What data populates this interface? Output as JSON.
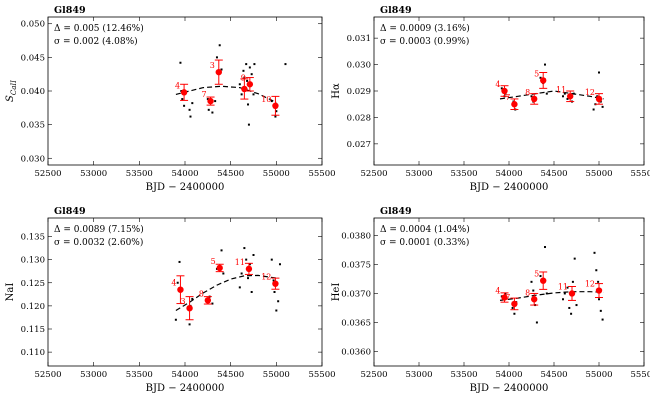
{
  "chart_data": [
    {
      "type": "scatter",
      "title": "Gl849",
      "xlabel": "BJD − 2400000",
      "ylabel": "S_CaII",
      "xlim": [
        52500,
        55500
      ],
      "ylim": [
        0.029,
        0.051
      ],
      "xticks": [
        52500,
        53000,
        53500,
        54000,
        54500,
        55000,
        55500
      ],
      "xtick_labels": [
        "52500",
        "53000",
        "53500",
        "54000",
        "54500",
        "55000",
        "55500"
      ],
      "yticks": [
        0.03,
        0.035,
        0.04,
        0.045,
        0.05
      ],
      "ytick_labels": [
        "0.030",
        "0.035",
        "0.040",
        "0.045",
        "0.050"
      ],
      "annotations": [
        "Δ = 0.005 (12.46%)",
        "σ = 0.002 (4.08%)"
      ],
      "raw_points": [
        {
          "x": 53950,
          "y": 0.0442
        },
        {
          "x": 53960,
          "y": 0.04
        },
        {
          "x": 53970,
          "y": 0.0388
        },
        {
          "x": 53990,
          "y": 0.0378
        },
        {
          "x": 54050,
          "y": 0.0372
        },
        {
          "x": 54060,
          "y": 0.0362
        },
        {
          "x": 54080,
          "y": 0.0382
        },
        {
          "x": 54250,
          "y": 0.0388
        },
        {
          "x": 54260,
          "y": 0.0372
        },
        {
          "x": 54300,
          "y": 0.0368
        },
        {
          "x": 54330,
          "y": 0.0385
        },
        {
          "x": 54350,
          "y": 0.045
        },
        {
          "x": 54380,
          "y": 0.0468
        },
        {
          "x": 54400,
          "y": 0.0432
        },
        {
          "x": 54600,
          "y": 0.041
        },
        {
          "x": 54620,
          "y": 0.0395
        },
        {
          "x": 54640,
          "y": 0.043
        },
        {
          "x": 54650,
          "y": 0.042
        },
        {
          "x": 54660,
          "y": 0.0405
        },
        {
          "x": 54670,
          "y": 0.044
        },
        {
          "x": 54680,
          "y": 0.0415
        },
        {
          "x": 54690,
          "y": 0.038
        },
        {
          "x": 54700,
          "y": 0.035
        },
        {
          "x": 54710,
          "y": 0.0435
        },
        {
          "x": 54720,
          "y": 0.041
        },
        {
          "x": 54730,
          "y": 0.0425
        },
        {
          "x": 54750,
          "y": 0.0395
        },
        {
          "x": 54760,
          "y": 0.044
        },
        {
          "x": 54950,
          "y": 0.0385
        },
        {
          "x": 54970,
          "y": 0.0378
        },
        {
          "x": 54990,
          "y": 0.0362
        },
        {
          "x": 55000,
          "y": 0.037
        },
        {
          "x": 55100,
          "y": 0.044
        }
      ],
      "binned": [
        {
          "x": 53990,
          "y": 0.0398,
          "err": 0.0012,
          "label": "4"
        },
        {
          "x": 54280,
          "y": 0.0385,
          "err": 0.0006,
          "label": "7"
        },
        {
          "x": 54370,
          "y": 0.0428,
          "err": 0.0018,
          "label": "3"
        },
        {
          "x": 54650,
          "y": 0.0403,
          "err": 0.0015,
          "label": ""
        },
        {
          "x": 54710,
          "y": 0.041,
          "err": 0.001,
          "label": "9"
        },
        {
          "x": 54990,
          "y": 0.0378,
          "err": 0.0014,
          "label": "10"
        }
      ],
      "fit": [
        {
          "x": 53900,
          "y": 0.0395
        },
        {
          "x": 54050,
          "y": 0.04
        },
        {
          "x": 54200,
          "y": 0.0405
        },
        {
          "x": 54400,
          "y": 0.0407
        },
        {
          "x": 54600,
          "y": 0.0405
        },
        {
          "x": 54800,
          "y": 0.0396
        },
        {
          "x": 55000,
          "y": 0.0383
        }
      ]
    },
    {
      "type": "scatter",
      "title": "Gl849",
      "xlabel": "BJD − 2400000",
      "ylabel": "Hα",
      "xlim": [
        52500,
        55500
      ],
      "ylim": [
        0.0262,
        0.0318
      ],
      "xticks": [
        52500,
        53000,
        53500,
        54000,
        54500,
        55000,
        55500
      ],
      "xtick_labels": [
        "52500",
        "53000",
        "53500",
        "54000",
        "54500",
        "55000",
        "55500"
      ],
      "yticks": [
        0.027,
        0.028,
        0.029,
        0.03,
        0.031
      ],
      "ytick_labels": [
        "0.027",
        "0.028",
        "0.029",
        "0.030",
        "0.031"
      ],
      "annotations": [
        "Δ = 0.0009 (3.16%)",
        "σ = 0.0003 (0.99%)"
      ],
      "raw_points": [
        {
          "x": 53920,
          "y": 0.0291
        },
        {
          "x": 53940,
          "y": 0.029
        },
        {
          "x": 53950,
          "y": 0.0288
        },
        {
          "x": 53960,
          "y": 0.0289
        },
        {
          "x": 54050,
          "y": 0.0286
        },
        {
          "x": 54070,
          "y": 0.0283
        },
        {
          "x": 54080,
          "y": 0.0285
        },
        {
          "x": 54250,
          "y": 0.0288
        },
        {
          "x": 54270,
          "y": 0.0286
        },
        {
          "x": 54300,
          "y": 0.0287
        },
        {
          "x": 54350,
          "y": 0.0295
        },
        {
          "x": 54380,
          "y": 0.0293
        },
        {
          "x": 54400,
          "y": 0.03
        },
        {
          "x": 54420,
          "y": 0.0289
        },
        {
          "x": 54600,
          "y": 0.0288
        },
        {
          "x": 54620,
          "y": 0.0289
        },
        {
          "x": 54650,
          "y": 0.0287
        },
        {
          "x": 54680,
          "y": 0.0288
        },
        {
          "x": 54700,
          "y": 0.0286
        },
        {
          "x": 54720,
          "y": 0.0289
        },
        {
          "x": 54940,
          "y": 0.0283
        },
        {
          "x": 54960,
          "y": 0.0285
        },
        {
          "x": 54980,
          "y": 0.0288
        },
        {
          "x": 55000,
          "y": 0.0297
        },
        {
          "x": 55020,
          "y": 0.0286
        },
        {
          "x": 55040,
          "y": 0.0284
        }
      ],
      "binned": [
        {
          "x": 53950,
          "y": 0.029,
          "err": 0.0002,
          "label": "4"
        },
        {
          "x": 54060,
          "y": 0.0285,
          "err": 0.0002,
          "label": "7"
        },
        {
          "x": 54280,
          "y": 0.0287,
          "err": 0.0002,
          "label": "8"
        },
        {
          "x": 54380,
          "y": 0.0294,
          "err": 0.0003,
          "label": "5"
        },
        {
          "x": 54680,
          "y": 0.0288,
          "err": 0.0002,
          "label": "11"
        },
        {
          "x": 55000,
          "y": 0.0287,
          "err": 0.0002,
          "label": "12"
        }
      ],
      "fit": [
        {
          "x": 53900,
          "y": 0.0287
        },
        {
          "x": 54100,
          "y": 0.0288
        },
        {
          "x": 54300,
          "y": 0.0289
        },
        {
          "x": 54500,
          "y": 0.029
        },
        {
          "x": 54700,
          "y": 0.0289
        },
        {
          "x": 54900,
          "y": 0.0288
        },
        {
          "x": 55050,
          "y": 0.0287
        }
      ]
    },
    {
      "type": "scatter",
      "title": "Gl849",
      "xlabel": "BJD − 2400000",
      "ylabel": "NaI",
      "xlim": [
        52500,
        55500
      ],
      "ylim": [
        0.107,
        0.139
      ],
      "xticks": [
        52500,
        53000,
        53500,
        54000,
        54500,
        55000,
        55500
      ],
      "xtick_labels": [
        "52500",
        "53000",
        "53500",
        "54000",
        "54500",
        "55000",
        "55500"
      ],
      "yticks": [
        0.11,
        0.115,
        0.12,
        0.125,
        0.13,
        0.135
      ],
      "ytick_labels": [
        "0.110",
        "0.115",
        "0.120",
        "0.125",
        "0.130",
        "0.135"
      ],
      "annotations": [
        "Δ = 0.0089 (7.15%)",
        "σ = 0.0032 (2.60%)"
      ],
      "raw_points": [
        {
          "x": 53900,
          "y": 0.117
        },
        {
          "x": 53920,
          "y": 0.125
        },
        {
          "x": 53940,
          "y": 0.1295
        },
        {
          "x": 53960,
          "y": 0.1235
        },
        {
          "x": 54050,
          "y": 0.116
        },
        {
          "x": 54060,
          "y": 0.12
        },
        {
          "x": 54080,
          "y": 0.1215
        },
        {
          "x": 54250,
          "y": 0.121
        },
        {
          "x": 54270,
          "y": 0.122
        },
        {
          "x": 54300,
          "y": 0.1205
        },
        {
          "x": 54350,
          "y": 0.128
        },
        {
          "x": 54380,
          "y": 0.1285
        },
        {
          "x": 54400,
          "y": 0.132
        },
        {
          "x": 54420,
          "y": 0.127
        },
        {
          "x": 54600,
          "y": 0.124
        },
        {
          "x": 54620,
          "y": 0.127
        },
        {
          "x": 54650,
          "y": 0.1325
        },
        {
          "x": 54670,
          "y": 0.13
        },
        {
          "x": 54690,
          "y": 0.126
        },
        {
          "x": 54710,
          "y": 0.129
        },
        {
          "x": 54730,
          "y": 0.123
        },
        {
          "x": 54750,
          "y": 0.131
        },
        {
          "x": 54950,
          "y": 0.13
        },
        {
          "x": 54970,
          "y": 0.1255
        },
        {
          "x": 54980,
          "y": 0.123
        },
        {
          "x": 55000,
          "y": 0.119
        },
        {
          "x": 55020,
          "y": 0.121
        },
        {
          "x": 55040,
          "y": 0.129
        }
      ],
      "binned": [
        {
          "x": 53950,
          "y": 0.1235,
          "err": 0.003,
          "label": "4"
        },
        {
          "x": 54050,
          "y": 0.1195,
          "err": 0.0025,
          "label": "3"
        },
        {
          "x": 54250,
          "y": 0.1212,
          "err": 0.0008,
          "label": "8"
        },
        {
          "x": 54380,
          "y": 0.1282,
          "err": 0.0008,
          "label": "5"
        },
        {
          "x": 54700,
          "y": 0.128,
          "err": 0.0012,
          "label": "11"
        },
        {
          "x": 54990,
          "y": 0.1248,
          "err": 0.0012,
          "label": "12"
        }
      ],
      "fit": [
        {
          "x": 53900,
          "y": 0.119
        },
        {
          "x": 54050,
          "y": 0.1208
        },
        {
          "x": 54200,
          "y": 0.1228
        },
        {
          "x": 54350,
          "y": 0.1245
        },
        {
          "x": 54500,
          "y": 0.1258
        },
        {
          "x": 54650,
          "y": 0.1265
        },
        {
          "x": 54800,
          "y": 0.1266
        },
        {
          "x": 55000,
          "y": 0.126
        }
      ]
    },
    {
      "type": "scatter",
      "title": "Gl849",
      "xlabel": "BJD − 2400000",
      "ylabel": "HeI",
      "xlim": [
        52500,
        55500
      ],
      "ylim": [
        0.03575,
        0.0383
      ],
      "xticks": [
        52500,
        53000,
        53500,
        54000,
        54500,
        55000,
        55500
      ],
      "xtick_labels": [
        "52500",
        "53000",
        "53500",
        "54000",
        "54500",
        "55000",
        "55500"
      ],
      "yticks": [
        0.036,
        0.0365,
        0.037,
        0.0375,
        0.038
      ],
      "ytick_labels": [
        "0.0360",
        "0.0365",
        "0.0370",
        "0.0375",
        "0.0380"
      ],
      "annotations": [
        "Δ = 0.0004 (1.04%)",
        "σ = 0.0001 (0.33%)"
      ],
      "raw_points": [
        {
          "x": 53920,
          "y": 0.03695
        },
        {
          "x": 53940,
          "y": 0.0369
        },
        {
          "x": 53960,
          "y": 0.037
        },
        {
          "x": 54040,
          "y": 0.03675
        },
        {
          "x": 54060,
          "y": 0.03665
        },
        {
          "x": 54080,
          "y": 0.03685
        },
        {
          "x": 54250,
          "y": 0.0372
        },
        {
          "x": 54270,
          "y": 0.03705
        },
        {
          "x": 54290,
          "y": 0.0368
        },
        {
          "x": 54310,
          "y": 0.0365
        },
        {
          "x": 54350,
          "y": 0.0373
        },
        {
          "x": 54380,
          "y": 0.03725
        },
        {
          "x": 54400,
          "y": 0.0378
        },
        {
          "x": 54420,
          "y": 0.037
        },
        {
          "x": 54600,
          "y": 0.0369
        },
        {
          "x": 54620,
          "y": 0.037
        },
        {
          "x": 54650,
          "y": 0.0371
        },
        {
          "x": 54670,
          "y": 0.03675
        },
        {
          "x": 54690,
          "y": 0.03665
        },
        {
          "x": 54710,
          "y": 0.0372
        },
        {
          "x": 54730,
          "y": 0.0376
        },
        {
          "x": 54750,
          "y": 0.0368
        },
        {
          "x": 54950,
          "y": 0.0377
        },
        {
          "x": 54970,
          "y": 0.0374
        },
        {
          "x": 54990,
          "y": 0.0372
        },
        {
          "x": 55000,
          "y": 0.0369
        },
        {
          "x": 55020,
          "y": 0.0367
        },
        {
          "x": 55040,
          "y": 0.03655
        }
      ],
      "binned": [
        {
          "x": 53950,
          "y": 0.03693,
          "err": 8e-05,
          "label": "4"
        },
        {
          "x": 54060,
          "y": 0.03682,
          "err": 0.0001,
          "label": "7"
        },
        {
          "x": 54280,
          "y": 0.0369,
          "err": 0.0001,
          "label": "8"
        },
        {
          "x": 54380,
          "y": 0.03722,
          "err": 0.00015,
          "label": "5"
        },
        {
          "x": 54700,
          "y": 0.037,
          "err": 0.00012,
          "label": "11"
        },
        {
          "x": 55000,
          "y": 0.03705,
          "err": 0.00012,
          "label": "12"
        }
      ],
      "fit": [
        {
          "x": 53900,
          "y": 0.03688
        },
        {
          "x": 54100,
          "y": 0.03692
        },
        {
          "x": 54300,
          "y": 0.03697
        },
        {
          "x": 54500,
          "y": 0.03701
        },
        {
          "x": 54700,
          "y": 0.03703
        },
        {
          "x": 54900,
          "y": 0.03703
        },
        {
          "x": 55050,
          "y": 0.03702
        }
      ]
    }
  ]
}
